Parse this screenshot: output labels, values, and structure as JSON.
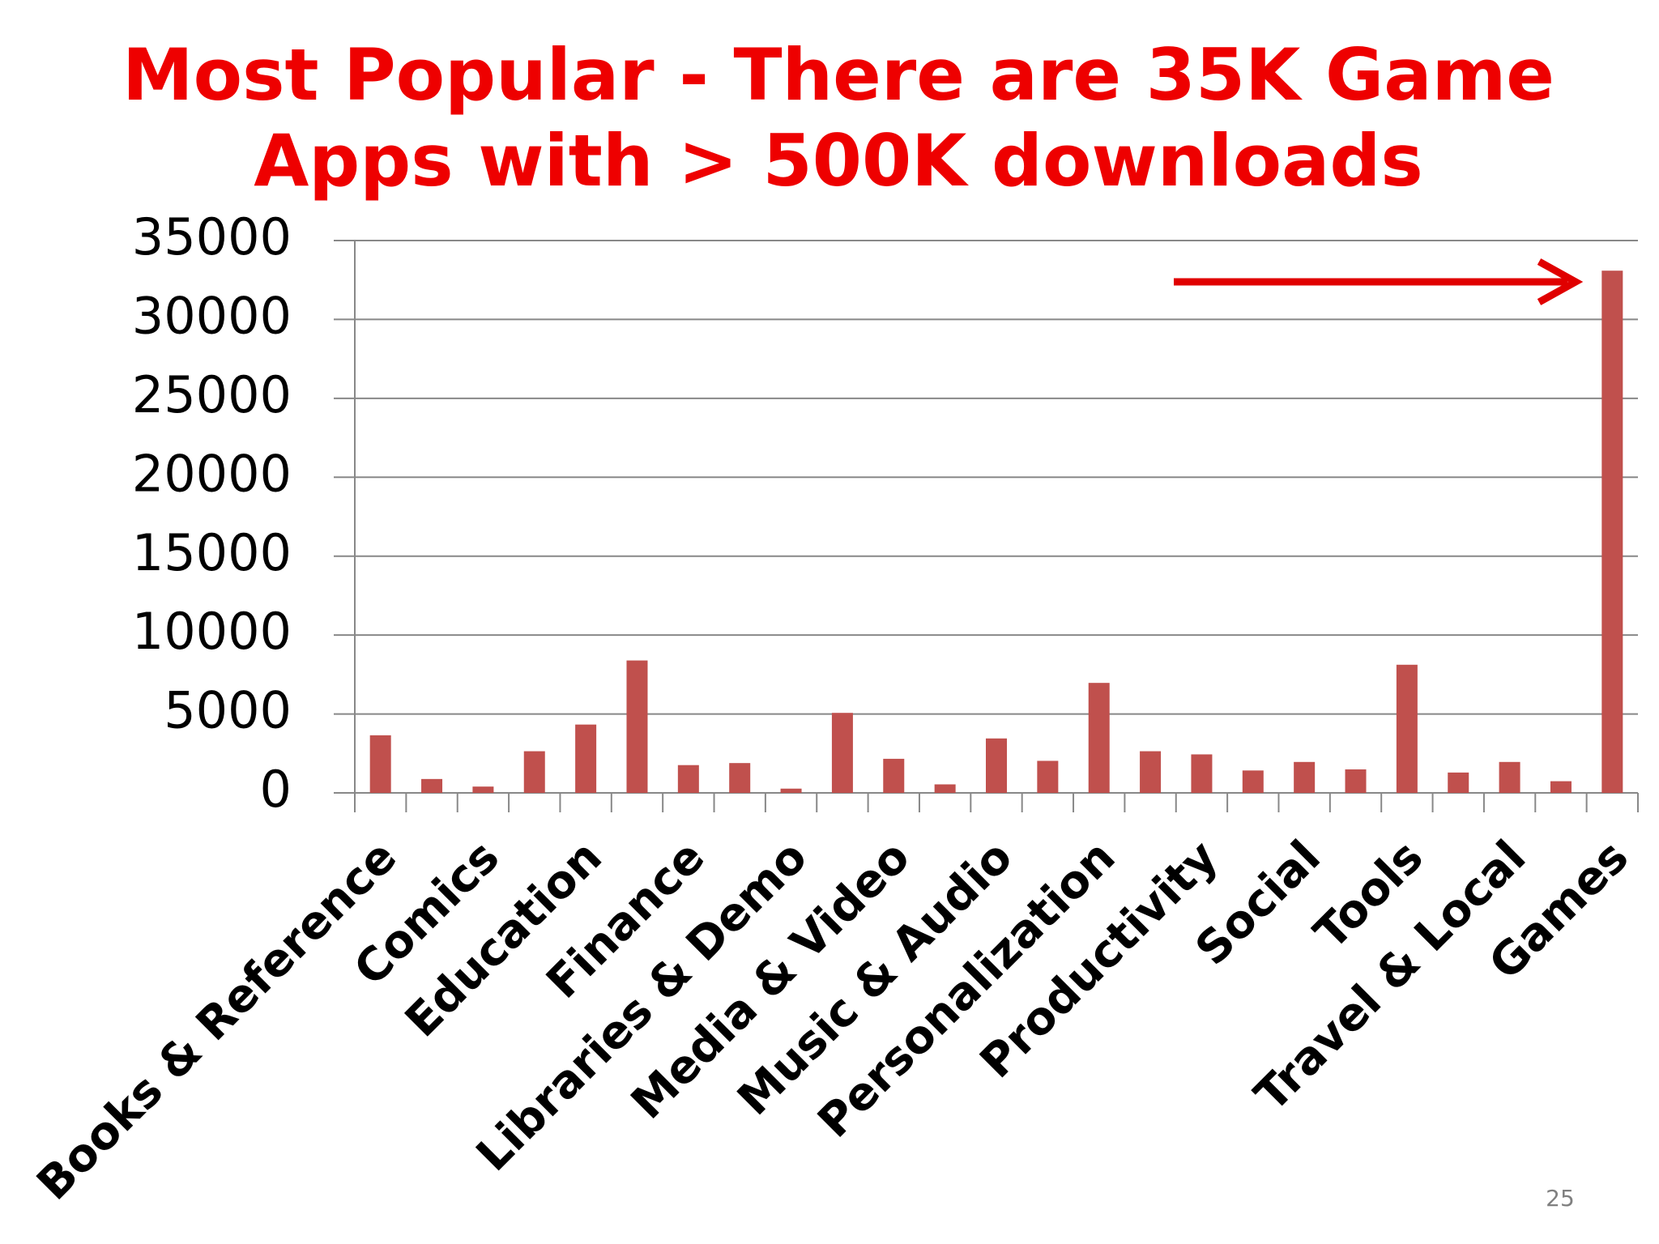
{
  "chart_data": {
    "type": "bar",
    "title": "Most Popular - There are 35K Game Apps with > 500K downloads",
    "categories": [
      "Books & Reference",
      null,
      "Comics",
      null,
      "Education",
      null,
      "Finance",
      null,
      "Libraries & Demo",
      null,
      "Media & Video",
      null,
      "Music & Audio",
      null,
      "Personalization",
      null,
      "Productivity",
      null,
      "Social",
      null,
      "Tools",
      null,
      "Travel & Local",
      null,
      "Games"
    ],
    "values": [
      3650,
      880,
      400,
      2640,
      4330,
      8390,
      1760,
      1890,
      270,
      5070,
      2160,
      540,
      3450,
      2030,
      6970,
      2640,
      2440,
      1420,
      1960,
      1490,
      8120,
      1290,
      1960,
      740,
      33090
    ],
    "color": "#c0504d",
    "ylim": [
      0,
      35000
    ],
    "yticks": [
      0,
      5000,
      10000,
      15000,
      20000,
      25000,
      30000,
      35000
    ],
    "grid": true
  },
  "page_number": "25"
}
